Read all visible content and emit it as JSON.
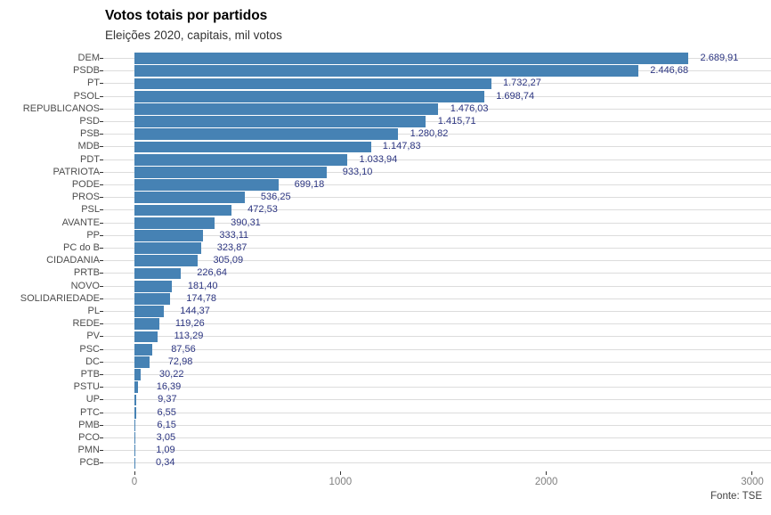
{
  "header": {
    "title": "Votos totais por partidos",
    "subtitle": "Eleições 2020, capitais, mil votos"
  },
  "caption": "Fonte: TSE",
  "colors": {
    "bar": "#4682B4",
    "value_label": "#2B3480",
    "gridline": "#DCDCDC",
    "y_axis_text": "#4D4D4D",
    "x_axis_text": "#808080",
    "tick": "#333333"
  },
  "chart_data": {
    "type": "bar",
    "orientation": "horizontal",
    "title": "Votos totais por partidos",
    "subtitle": "Eleições 2020, capitais, mil votos",
    "source": "Fonte: TSE",
    "xlabel": "",
    "ylabel": "",
    "xlim": [
      0,
      3000
    ],
    "xticks": [
      0,
      1000,
      2000,
      3000
    ],
    "grid": "horizontal-only",
    "legend": "none",
    "categories": [
      "DEM",
      "PSDB",
      "PT",
      "PSOL",
      "REPUBLICANOS",
      "PSD",
      "PSB",
      "MDB",
      "PDT",
      "PATRIOTA",
      "PODE",
      "PROS",
      "PSL",
      "AVANTE",
      "PP",
      "PC do B",
      "CIDADANIA",
      "PRTB",
      "NOVO",
      "SOLIDARIEDADE",
      "PL",
      "REDE",
      "PV",
      "PSC",
      "DC",
      "PTB",
      "PSTU",
      "UP",
      "PTC",
      "PMB",
      "PCO",
      "PMN",
      "PCB"
    ],
    "values": [
      2689.91,
      2446.68,
      1732.27,
      1698.74,
      1476.03,
      1415.71,
      1280.82,
      1147.83,
      1033.94,
      933.1,
      699.18,
      536.25,
      472.53,
      390.31,
      333.11,
      323.87,
      305.09,
      226.64,
      181.4,
      174.78,
      144.37,
      119.26,
      113.29,
      87.56,
      72.98,
      30.22,
      16.39,
      9.37,
      6.55,
      6.15,
      3.05,
      1.09,
      0.34
    ],
    "value_labels": [
      "2.689,91",
      "2.446,68",
      "1.732,27",
      "1.698,74",
      "1.476,03",
      "1.415,71",
      "1.280,82",
      "1.147,83",
      "1.033,94",
      "933,10",
      "699,18",
      "536,25",
      "472,53",
      "390,31",
      "333,11",
      "323,87",
      "305,09",
      "226,64",
      "181,40",
      "174,78",
      "144,37",
      "119,26",
      "113,29",
      "87,56",
      "72,98",
      "30,22",
      "16,39",
      "9,37",
      "6,55",
      "6,15",
      "3,05",
      "1,09",
      "0,34"
    ]
  }
}
